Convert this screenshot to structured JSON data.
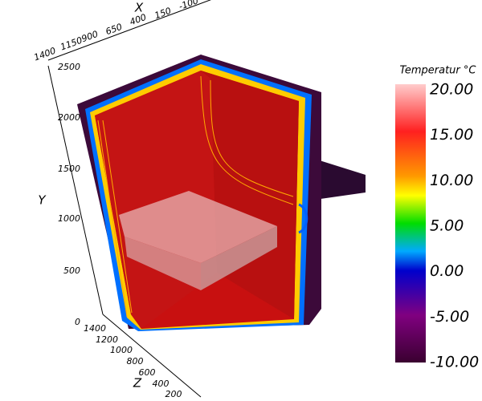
{
  "axes": {
    "x": {
      "label": "X",
      "ticks": [
        "1400",
        "1150",
        "900",
        "650",
        "400",
        "150",
        "-100"
      ]
    },
    "y": {
      "label": "Y",
      "ticks": [
        "2500",
        "2000",
        "1500",
        "1000",
        "500",
        "0"
      ]
    },
    "z": {
      "label": "Z",
      "ticks": [
        "1400",
        "1200",
        "1000",
        "800",
        "600",
        "400",
        "200"
      ]
    }
  },
  "colorbar": {
    "title": "Temperatur °C",
    "ticks": [
      "20.00",
      "15.00",
      "10.00",
      "5.00",
      "0.00",
      "-5.00",
      "-10.00"
    ]
  }
}
